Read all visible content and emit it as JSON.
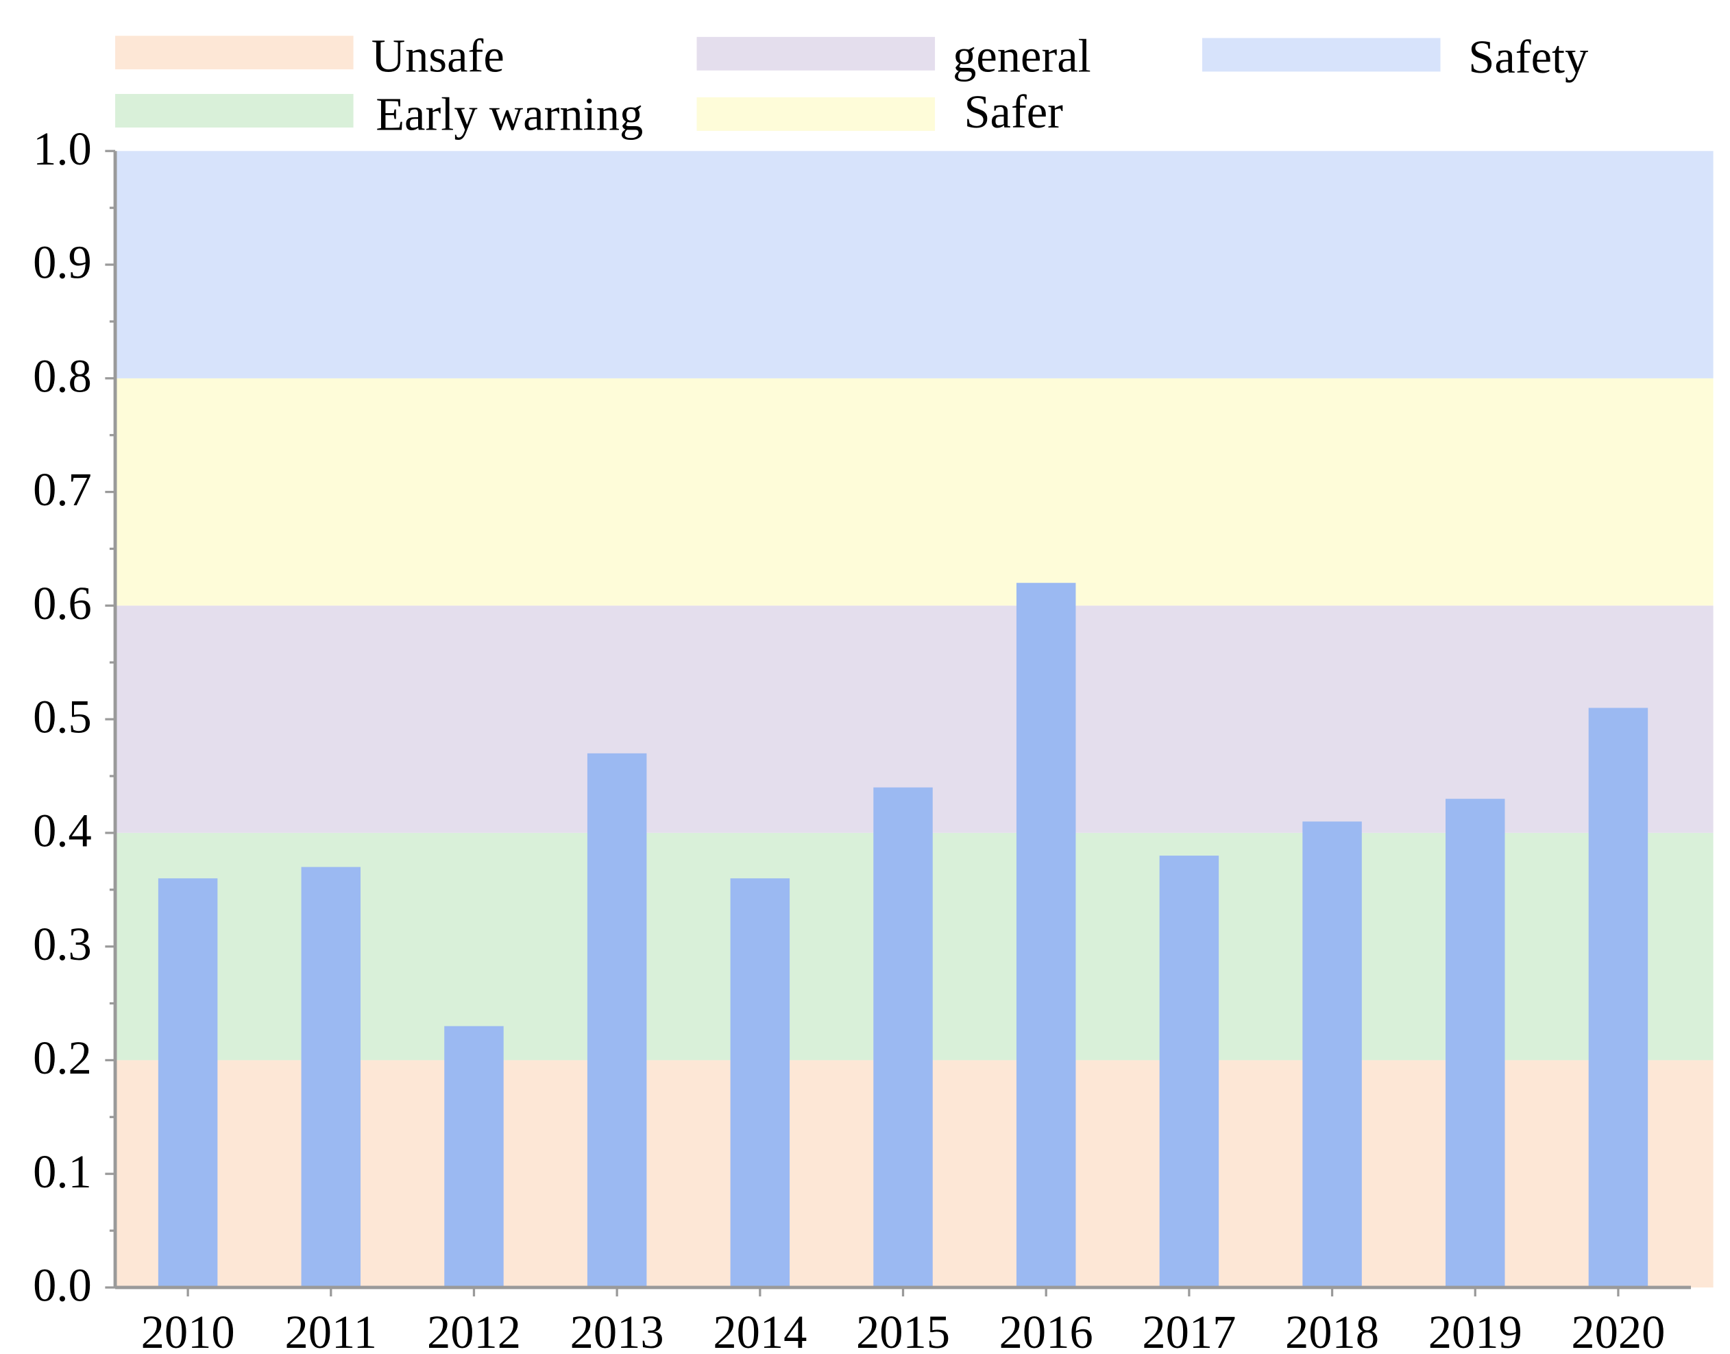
{
  "chart_data": {
    "type": "bar",
    "title": "",
    "xlabel": "",
    "ylabel": "",
    "categories": [
      "2010",
      "2011",
      "2012",
      "2013",
      "2014",
      "2015",
      "2016",
      "2017",
      "2018",
      "2019",
      "2020"
    ],
    "values": [
      0.36,
      0.37,
      0.23,
      0.47,
      0.36,
      0.44,
      0.62,
      0.38,
      0.41,
      0.43,
      0.51
    ],
    "ylim": [
      0,
      1.0
    ],
    "yticks": [
      "0.0",
      "0.1",
      "0.2",
      "0.3",
      "0.4",
      "0.5",
      "0.6",
      "0.7",
      "0.8",
      "0.9",
      "1.0"
    ],
    "bar_color": "#9bb9f2",
    "bands": [
      {
        "name": "Unsafe",
        "from": 0.0,
        "to": 0.2,
        "color": "#fde7d6"
      },
      {
        "name": "Early warning",
        "from": 0.2,
        "to": 0.4,
        "color": "#d9f0d9"
      },
      {
        "name": "general",
        "from": 0.4,
        "to": 0.6,
        "color": "#e4deed"
      },
      {
        "name": "Safer",
        "from": 0.6,
        "to": 0.8,
        "color": "#fefcd9"
      },
      {
        "name": "Safety",
        "from": 0.8,
        "to": 1.0,
        "color": "#d7e3fb"
      }
    ],
    "legend": {
      "position": "top",
      "row1": [
        "Unsafe",
        "general",
        "Safety"
      ],
      "row2": [
        "Early warning",
        "Safer"
      ]
    }
  }
}
